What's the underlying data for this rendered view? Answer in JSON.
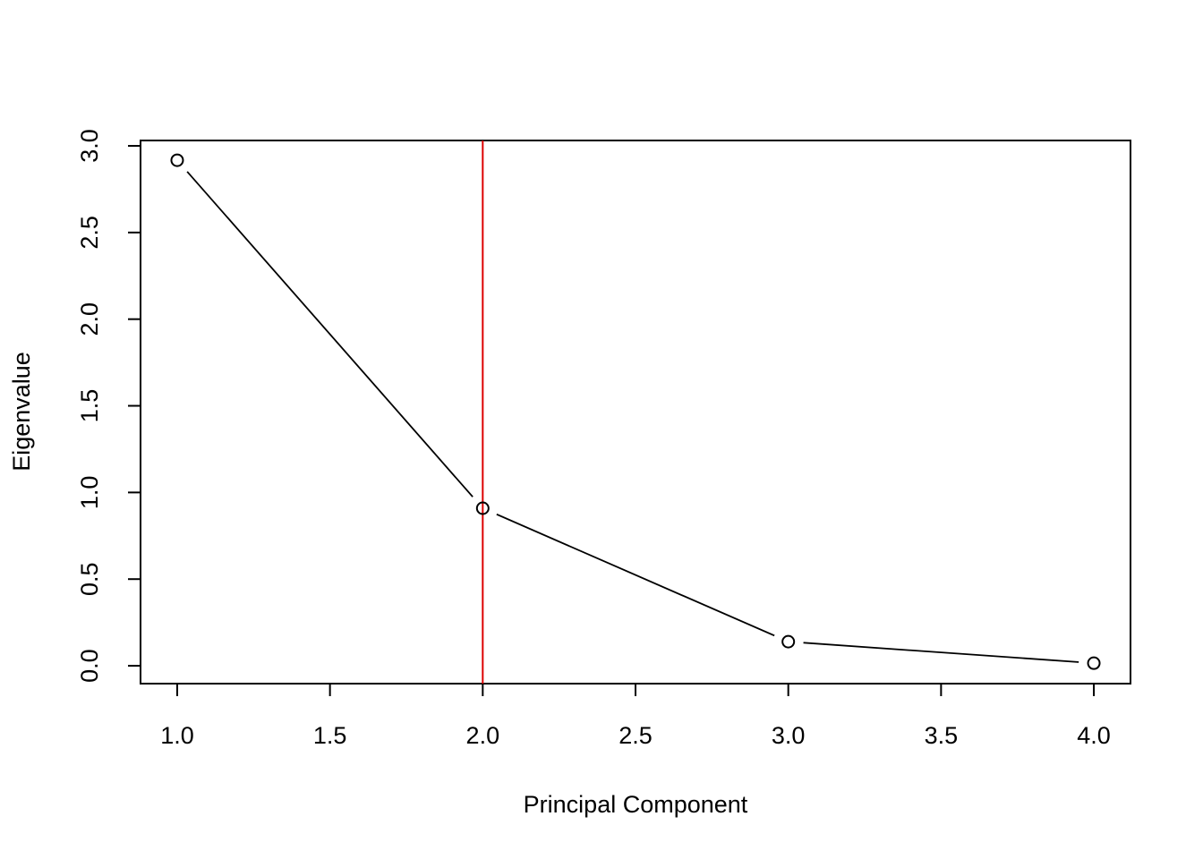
{
  "chart_data": {
    "type": "line",
    "xlabel": "Principal Component",
    "ylabel": "Eigenvalue",
    "x": [
      1,
      2,
      3,
      4
    ],
    "series": [
      {
        "color": "#000000",
        "values": [
          2.917,
          0.909,
          0.139,
          0.015
        ]
      }
    ],
    "xlim": [
      0.88,
      4.12
    ],
    "ylim": [
      -0.103,
      3.031
    ],
    "xticks": [
      {
        "value": 1,
        "label": "1.0"
      },
      1.5,
      {
        "value": 2,
        "label": "2.0"
      },
      2.5,
      {
        "value": 3,
        "label": "3.0"
      },
      3.5,
      {
        "value": 4,
        "label": "4.0"
      }
    ],
    "yticks": [
      {
        "value": 0,
        "label": "0.0"
      },
      0.5,
      {
        "value": 1,
        "label": "1.0"
      },
      1.5,
      {
        "value": 2,
        "label": "2.0"
      },
      2.5,
      {
        "value": 3,
        "label": "3.0"
      }
    ],
    "vline": {
      "x": 2,
      "color": "#dd0000"
    }
  }
}
